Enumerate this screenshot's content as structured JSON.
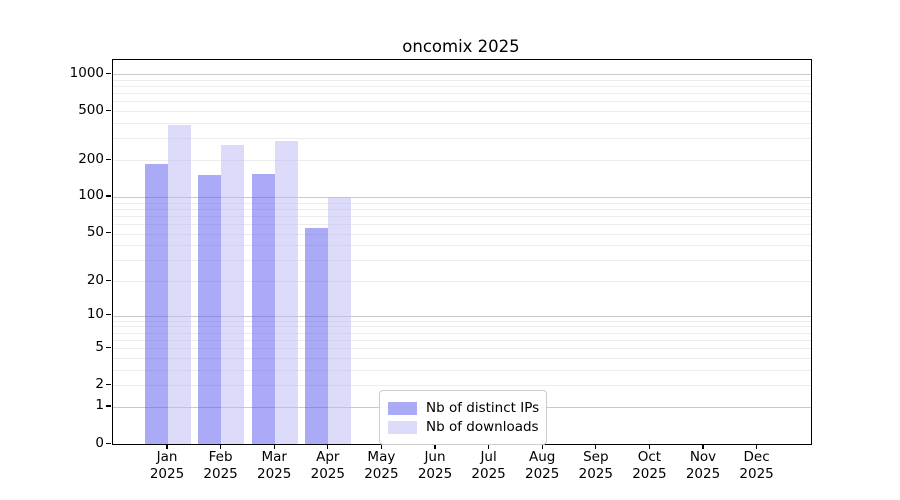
{
  "chart_data": {
    "type": "bar",
    "title": "oncomix 2025",
    "year_label": "2025",
    "categories": [
      "Jan",
      "Feb",
      "Mar",
      "Apr",
      "May",
      "Jun",
      "Jul",
      "Aug",
      "Sep",
      "Oct",
      "Nov",
      "Dec"
    ],
    "series": [
      {
        "name": "Nb of distinct IPs",
        "color": "#5555ee",
        "alpha": 0.5,
        "values": [
          185,
          150,
          155,
          55,
          0,
          0,
          0,
          0,
          0,
          0,
          0,
          0
        ]
      },
      {
        "name": "Nb of downloads",
        "color": "#b9b9f5",
        "alpha": 0.5,
        "values": [
          385,
          265,
          285,
          100,
          0,
          0,
          0,
          0,
          0,
          0,
          0,
          0
        ]
      }
    ],
    "y_scale": "log10(value+1)",
    "y_ticks": [
      0,
      1,
      2,
      5,
      10,
      20,
      50,
      100,
      200,
      500,
      1000
    ],
    "ylim": [
      0,
      1300
    ],
    "xlabel": "",
    "ylabel": "",
    "grid": "horizontal; light minor lines at 2-9 per decade, darker major lines at 1,10,100,1000",
    "legend_position": "bottom center inside plot",
    "colors": {
      "axis": "#000000",
      "grid_minor": "#ececec",
      "grid_major": "#c9c9c9",
      "background": "#ffffff"
    }
  }
}
